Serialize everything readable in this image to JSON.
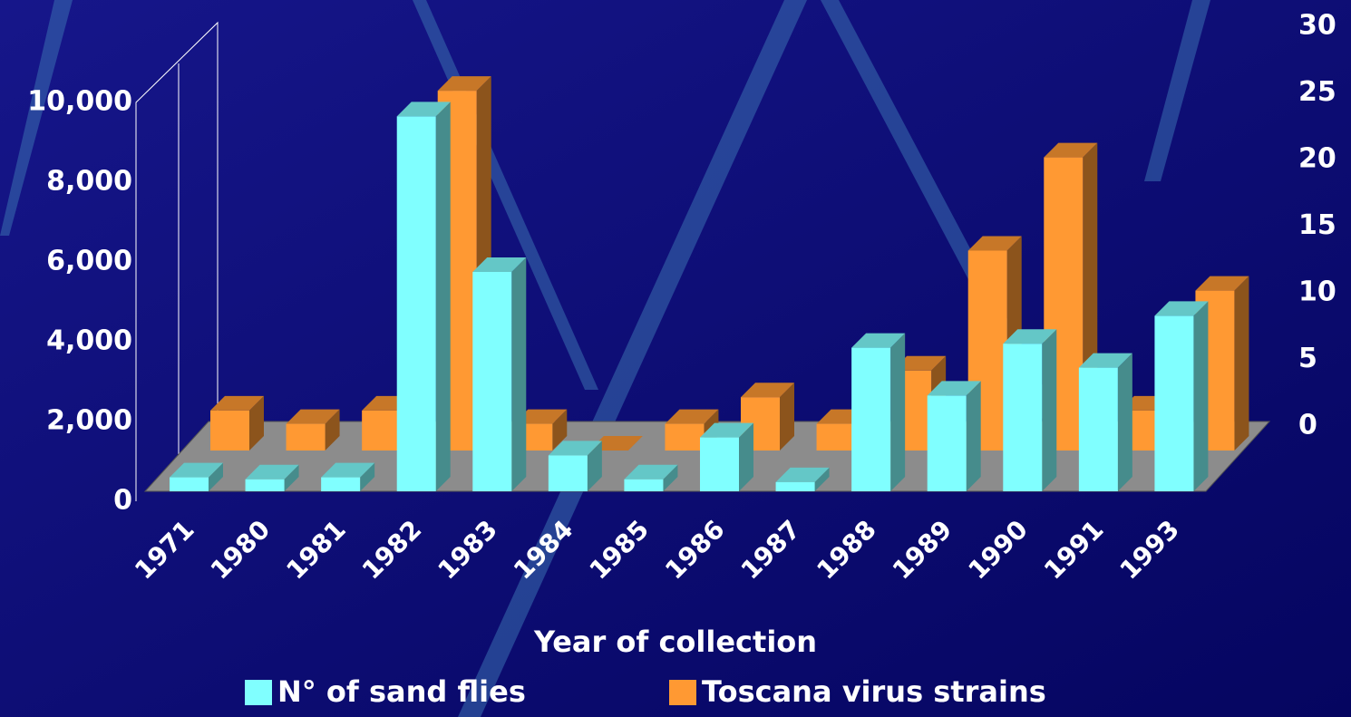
{
  "chart_data": {
    "type": "bar3d",
    "x_label": "Year of collection",
    "categories": [
      "1971",
      "1980",
      "1981",
      "1982",
      "1983",
      "1984",
      "1985",
      "1986",
      "1987",
      "1988",
      "1989",
      "1990",
      "1991",
      "1993"
    ],
    "series": [
      {
        "name": "N° of sand flies",
        "color": "#80ffff",
        "values": [
          350,
          300,
          350,
          9400,
          5500,
          900,
          300,
          1350,
          230,
          3600,
          2400,
          3700,
          3100,
          4400
        ]
      },
      {
        "name": "Toscana virus strains",
        "color": "#ff9933",
        "axis": "y2",
        "values": [
          3,
          2,
          3,
          27,
          2,
          0,
          2,
          4,
          2,
          6,
          15,
          22,
          3,
          12
        ]
      }
    ],
    "ylim": [
      0,
      10000
    ],
    "yticks": [
      0,
      {
        "value": 2000,
        "label": "2,000"
      },
      {
        "value": 4000,
        "label": "4,000"
      },
      {
        "value": 6000,
        "label": "6,000"
      },
      {
        "value": 8000,
        "label": "8,000"
      },
      {
        "value": 10000,
        "label": "10,000"
      }
    ],
    "y2lim": [
      0,
      30
    ],
    "y2ticks": [
      0,
      5,
      10,
      15,
      20,
      25,
      30
    ],
    "legend": "bottom"
  }
}
